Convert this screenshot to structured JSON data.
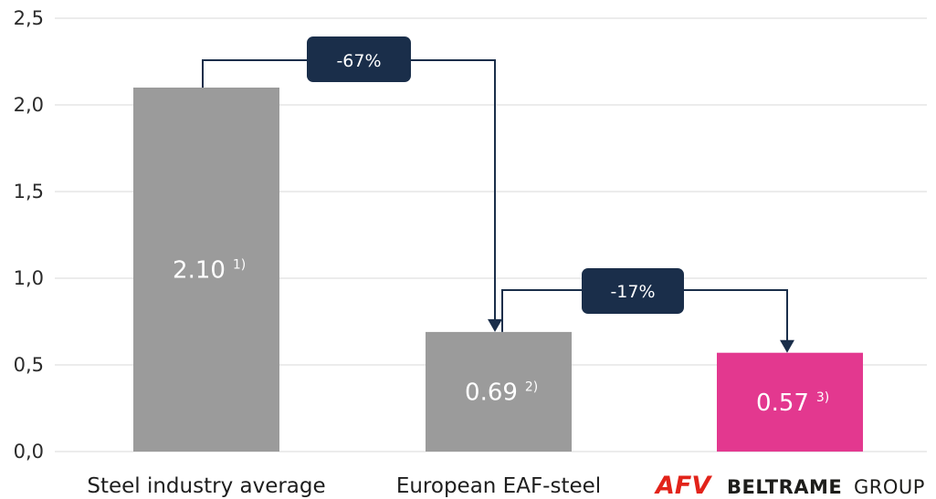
{
  "chart_data": {
    "type": "bar",
    "categories": [
      "Steel industry average",
      "European EAF-steel",
      "BELTRAME GROUP"
    ],
    "values": [
      2.1,
      0.69,
      0.57
    ],
    "data_labels": [
      "2.10",
      "0.69",
      "0.57"
    ],
    "footnotes": [
      "1)",
      "2)",
      "3)"
    ],
    "bar_colors": [
      "#9b9b9b",
      "#9b9b9b",
      "#e3388f"
    ],
    "ylim": [
      0,
      2.5
    ],
    "yticks": [
      "0,0",
      "0,5",
      "1,0",
      "1,5",
      "2,0",
      "2,5"
    ],
    "ytick_values": [
      0,
      0.5,
      1.0,
      1.5,
      2.0,
      2.5
    ],
    "grid": true,
    "annotations": [
      {
        "label": "-67%",
        "from": 0,
        "to": 1
      },
      {
        "label": "-17%",
        "from": 1,
        "to": 2
      }
    ],
    "annotation_color": "#1a2e4a"
  },
  "logo": {
    "mark": "AFV",
    "name_bold": "BELTRAME",
    "name_light": "GROUP",
    "mark_color": "#e2231a"
  }
}
